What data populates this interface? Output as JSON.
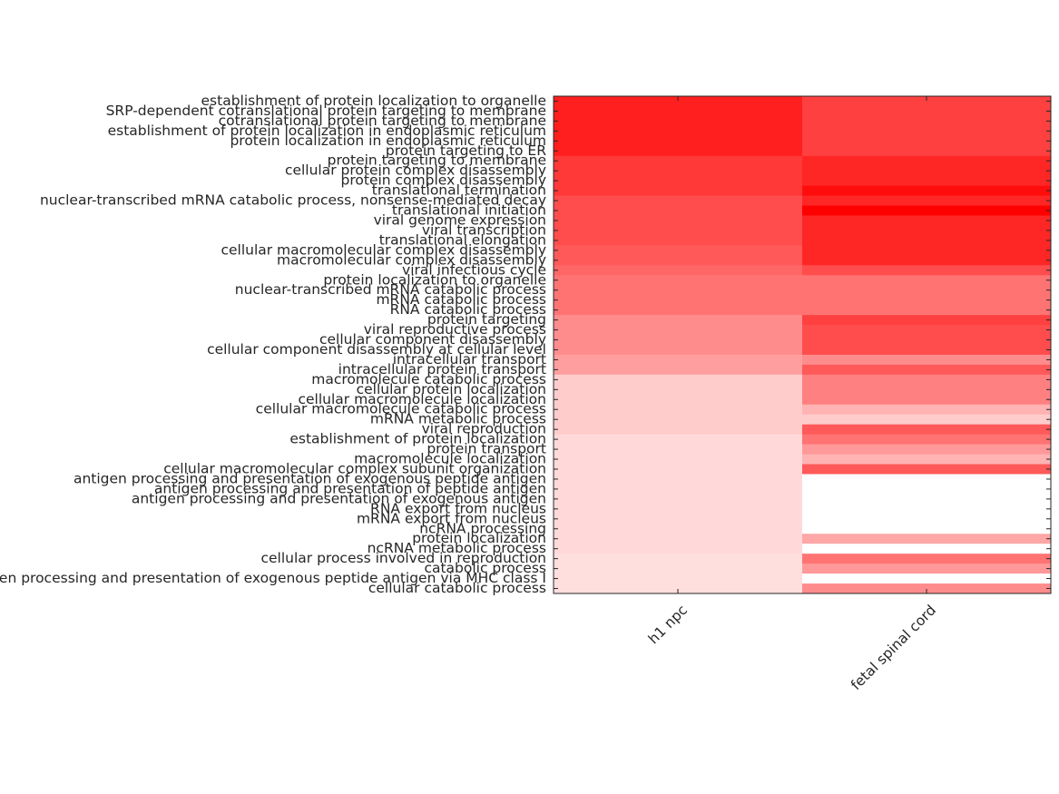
{
  "chart_data": {
    "type": "heatmap",
    "x": [
      "h1 npc",
      "fetal spinal cord"
    ],
    "y": [
      "establishment of protein localization to organelle",
      "SRP-dependent cotranslational protein targeting to membrane",
      "cotranslational protein targeting to membrane",
      "establishment of protein localization in endoplasmic reticulum",
      "protein localization in endoplasmic reticulum",
      "protein targeting to ER",
      "protein targeting to membrane",
      "cellular protein complex disassembly",
      "protein complex disassembly",
      "translational termination",
      "nuclear-transcribed mRNA catabolic process, nonsense-mediated decay",
      "translational initiation",
      "viral genome expression",
      "viral transcription",
      "translational elongation",
      "cellular macromolecular complex disassembly",
      "macromolecular complex disassembly",
      "viral infectious cycle",
      "protein localization to organelle",
      "nuclear-transcribed mRNA catabolic process",
      "mRNA catabolic process",
      "RNA catabolic process",
      "protein targeting",
      "viral reproductive process",
      "cellular component disassembly",
      "cellular component disassembly at cellular level",
      "intracellular transport",
      "intracellular protein transport",
      "macromolecule catabolic process",
      "cellular protein localization",
      "cellular macromolecule localization",
      "cellular macromolecule catabolic process",
      "mRNA metabolic process",
      "viral reproduction",
      "establishment of protein localization",
      "protein transport",
      "macromolecule localization",
      "cellular macromolecular complex subunit organization",
      "antigen processing and presentation of exogenous peptide antigen",
      "antigen processing and presentation of peptide antigen",
      "antigen processing and presentation of exogenous antigen",
      "RNA export from nucleus",
      "mRNA export from nucleus",
      "ncRNA processing",
      "protein localization",
      "ncRNA metabolic process",
      "cellular process involved in reproduction",
      "catabolic process",
      "antigen processing and presentation of exogenous peptide antigen via MHC class I",
      "cellular catabolic process"
    ],
    "values": [
      [
        0.88,
        0.75
      ],
      [
        0.88,
        0.75
      ],
      [
        0.88,
        0.75
      ],
      [
        0.88,
        0.75
      ],
      [
        0.88,
        0.75
      ],
      [
        0.88,
        0.75
      ],
      [
        0.78,
        0.85
      ],
      [
        0.78,
        0.85
      ],
      [
        0.78,
        0.85
      ],
      [
        0.78,
        0.95
      ],
      [
        0.7,
        0.85
      ],
      [
        0.7,
        1.0
      ],
      [
        0.7,
        0.85
      ],
      [
        0.7,
        0.85
      ],
      [
        0.7,
        0.85
      ],
      [
        0.65,
        0.85
      ],
      [
        0.65,
        0.85
      ],
      [
        0.6,
        0.7
      ],
      [
        0.55,
        0.55
      ],
      [
        0.55,
        0.55
      ],
      [
        0.55,
        0.55
      ],
      [
        0.55,
        0.55
      ],
      [
        0.45,
        0.75
      ],
      [
        0.45,
        0.7
      ],
      [
        0.45,
        0.7
      ],
      [
        0.45,
        0.7
      ],
      [
        0.38,
        0.45
      ],
      [
        0.38,
        0.65
      ],
      [
        0.2,
        0.5
      ],
      [
        0.2,
        0.5
      ],
      [
        0.2,
        0.5
      ],
      [
        0.2,
        0.3
      ],
      [
        0.2,
        0.2
      ],
      [
        0.2,
        0.65
      ],
      [
        0.15,
        0.55
      ],
      [
        0.15,
        0.4
      ],
      [
        0.15,
        0.3
      ],
      [
        0.15,
        0.65
      ],
      [
        0.15,
        0
      ],
      [
        0.15,
        0
      ],
      [
        0.15,
        0
      ],
      [
        0.15,
        0
      ],
      [
        0.15,
        0
      ],
      [
        0.15,
        0
      ],
      [
        0.15,
        0.35
      ],
      [
        0.15,
        0
      ],
      [
        0.13,
        0.55
      ],
      [
        0.13,
        0.4
      ],
      [
        0.13,
        0
      ],
      [
        0.13,
        0.45
      ]
    ],
    "colormap": [
      "#ffffff",
      "#ff0000"
    ]
  }
}
